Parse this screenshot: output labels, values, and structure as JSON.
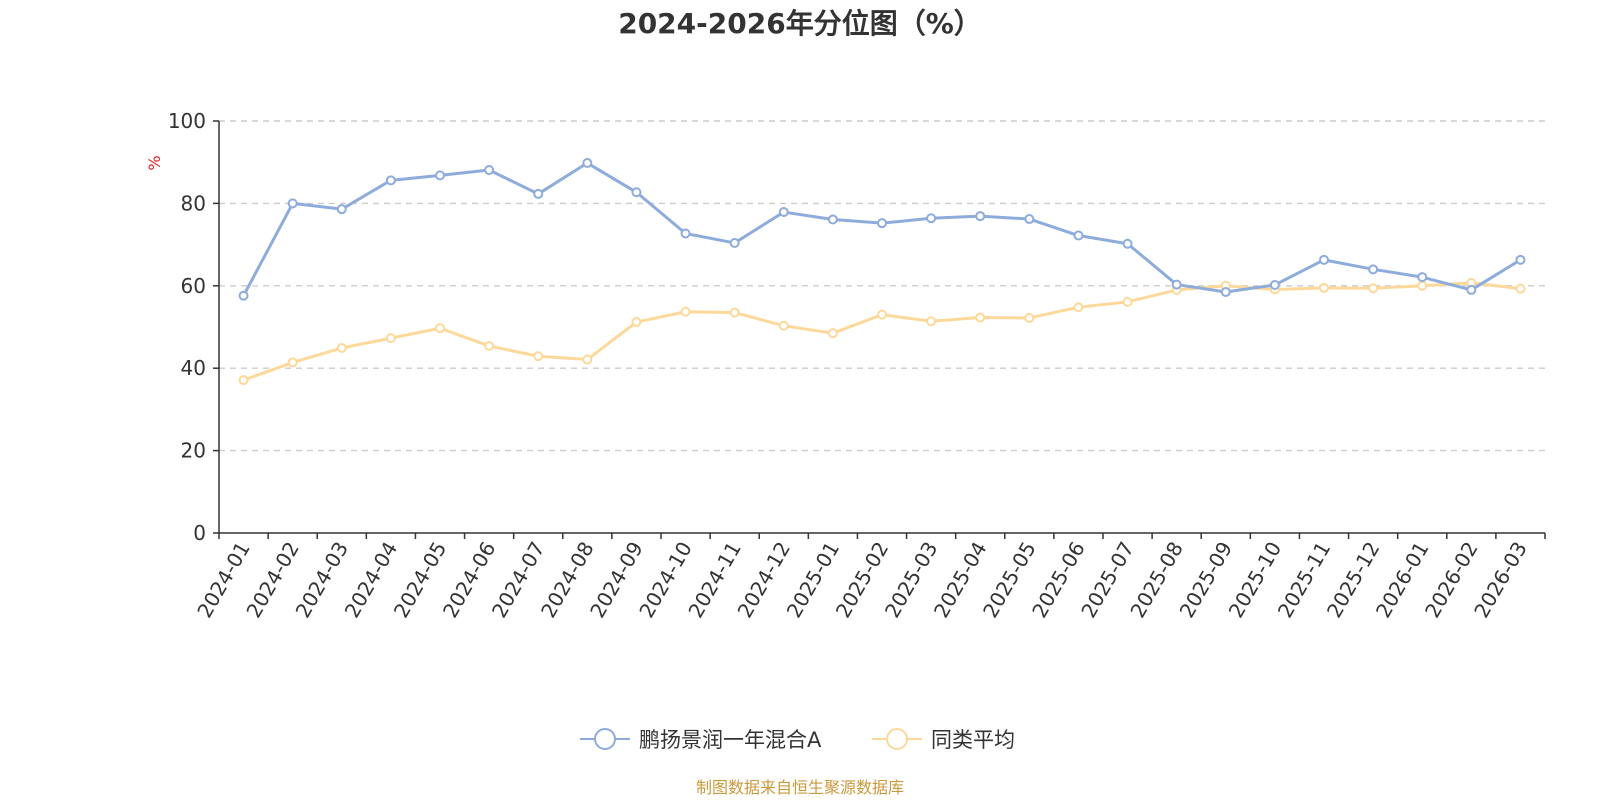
{
  "chart_data": {
    "type": "line",
    "title": "2024-2026年分位图（%）",
    "ylabel": "%",
    "ylim": [
      0,
      100
    ],
    "yticks": [
      "0",
      "20",
      "40",
      "60",
      "80",
      "100"
    ],
    "grid": true,
    "legend_position": "bottom",
    "categories": [
      "2024-01",
      "2024-02",
      "2024-03",
      "2024-04",
      "2024-05",
      "2024-06",
      "2024-07",
      "2024-08",
      "2024-09",
      "2024-10",
      "2024-11",
      "2024-12",
      "2025-01",
      "2025-02",
      "2025-03",
      "2025-04",
      "2025-05",
      "2025-06",
      "2025-07",
      "2025-08",
      "2025-09",
      "2025-10",
      "2025-11",
      "2025-12",
      "2026-01",
      "2026-02",
      "2026-03"
    ],
    "series": [
      {
        "name": "鹏扬景润一年混合A",
        "color": "#8eacdb",
        "values": [
          57.6,
          80.0,
          78.6,
          85.6,
          86.8,
          88.1,
          82.3,
          89.8,
          82.7,
          72.7,
          70.4,
          77.9,
          76.1,
          75.2,
          76.4,
          76.9,
          76.2,
          72.2,
          70.2,
          60.3,
          58.5,
          60.2,
          66.3,
          64.0,
          62.1,
          59.0,
          66.3
        ]
      },
      {
        "name": "同类平均",
        "color": "#fcd99a",
        "values": [
          37.1,
          41.4,
          44.9,
          47.3,
          49.7,
          45.4,
          42.9,
          42.1,
          51.2,
          53.7,
          53.5,
          50.3,
          48.5,
          53.0,
          51.4,
          52.3,
          52.2,
          54.8,
          56.1,
          59.0,
          60.0,
          59.1,
          59.5,
          59.4,
          60.0,
          60.7,
          59.3
        ]
      }
    ]
  },
  "source": "制图数据来自恒生聚源数据库",
  "colors": {
    "axis": "#333333",
    "grid": "#cccccc",
    "ylabel": "#e02020",
    "source": "#c89a3c"
  }
}
